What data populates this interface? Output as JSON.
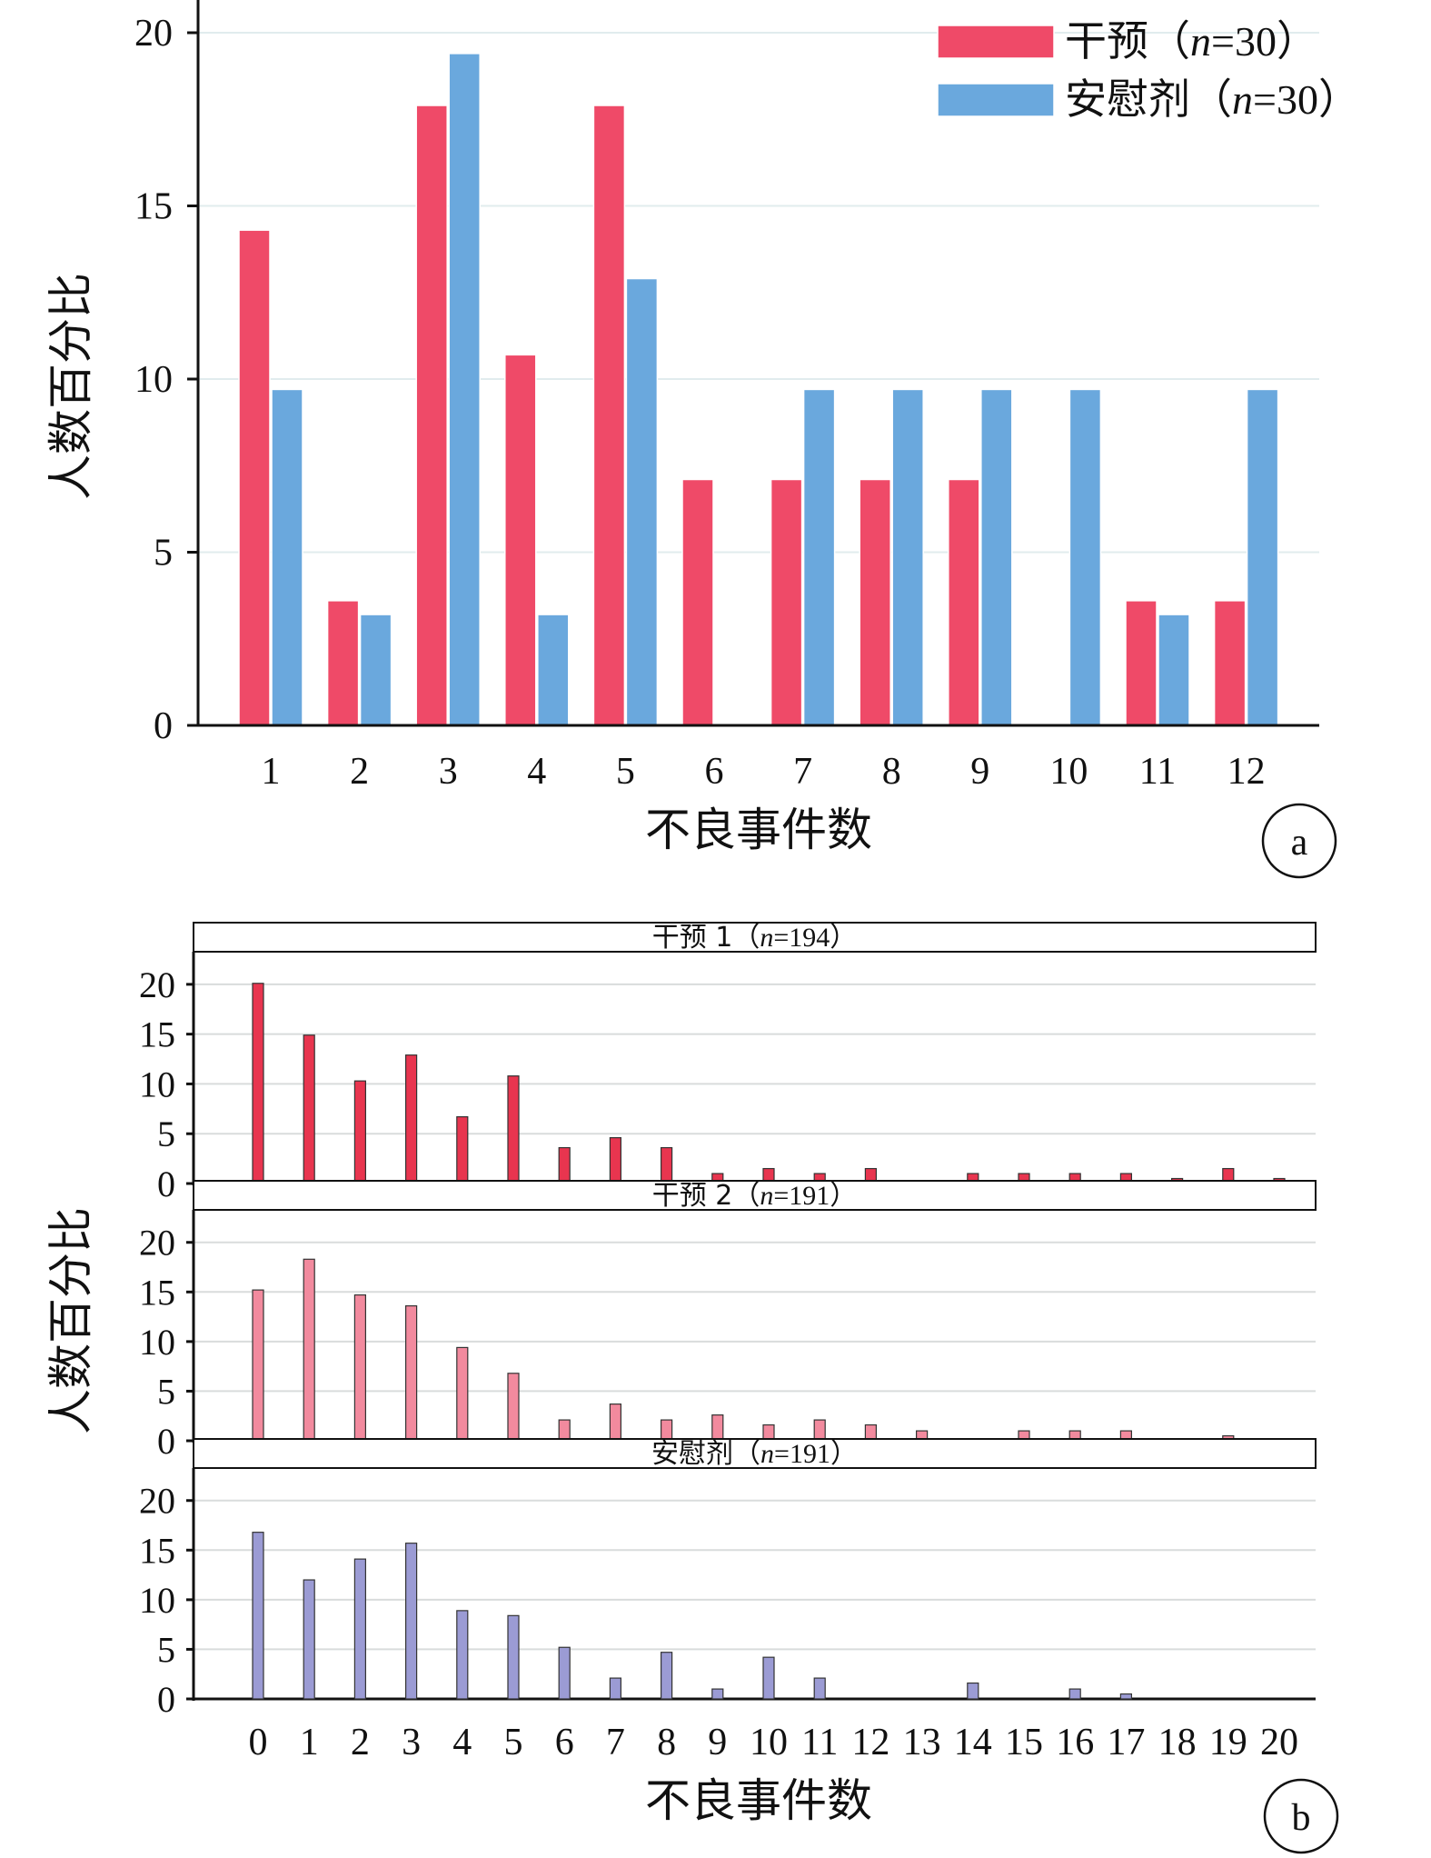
{
  "chart_data": [
    {
      "panel_label": "a",
      "type": "bar",
      "xlabel": "不良事件数",
      "ylabel": "人数百分比",
      "ylim": [
        0,
        20
      ],
      "yticks": [
        "0",
        "5",
        "10",
        "15",
        "20"
      ],
      "categories": [
        "1",
        "2",
        "3",
        "4",
        "5",
        "6",
        "7",
        "8",
        "9",
        "10",
        "11",
        "12"
      ],
      "grid": "horizontal",
      "legend_position": "top-right",
      "series": [
        {
          "name": "干预（n=30）",
          "name_prefix": "干预（",
          "name_var": "n",
          "name_suffix": "=30）",
          "color": "#ef4a68",
          "values": [
            14.3,
            3.6,
            17.9,
            10.7,
            17.9,
            7.1,
            7.1,
            7.1,
            7.1,
            0,
            3.6,
            3.6
          ]
        },
        {
          "name": "安慰剂（n=30）",
          "name_prefix": "安慰剂（",
          "name_var": "n",
          "name_suffix": "=30）",
          "color": "#6aa8dd",
          "values": [
            9.7,
            3.2,
            19.4,
            3.2,
            12.9,
            0,
            9.7,
            9.7,
            9.7,
            9.7,
            3.2,
            9.7
          ]
        }
      ]
    },
    {
      "panel_label": "b",
      "type": "bar",
      "xlabel": "不良事件数",
      "ylabel": "人数百分比",
      "ylim": [
        0,
        23
      ],
      "yticks": [
        "0",
        "5",
        "10",
        "15",
        "20"
      ],
      "categories": [
        "0",
        "1",
        "2",
        "3",
        "4",
        "5",
        "6",
        "7",
        "8",
        "9",
        "10",
        "11",
        "12",
        "13",
        "14",
        "15",
        "16",
        "17",
        "18",
        "19",
        "20"
      ],
      "grid": "horizontal",
      "facets": [
        {
          "title": "干预 1（n=194）",
          "title_prefix": "干预 1（",
          "title_var": "n",
          "title_suffix": "=194）",
          "color": "#e8354f",
          "values": [
            20.1,
            14.9,
            10.3,
            12.9,
            6.7,
            10.8,
            3.6,
            4.6,
            3.6,
            1.0,
            1.5,
            1.0,
            1.5,
            0,
            1.0,
            1.0,
            1.0,
            1.0,
            0.5,
            1.5,
            0.5
          ]
        },
        {
          "title": "干预 2（n=191）",
          "title_prefix": "干预 2（",
          "title_var": "n",
          "title_suffix": "=191）",
          "color": "#f28a9e",
          "values": [
            15.2,
            18.3,
            14.7,
            13.6,
            9.4,
            6.8,
            2.1,
            3.7,
            2.1,
            2.6,
            1.6,
            2.1,
            1.6,
            1.0,
            0,
            1.0,
            1.0,
            1.0,
            0,
            0.5,
            0
          ]
        },
        {
          "title": "安慰剂（n=191）",
          "title_prefix": "安慰剂（",
          "title_var": "n",
          "title_suffix": "=191）",
          "color": "#9b9bd4",
          "values": [
            16.8,
            12.0,
            14.1,
            15.7,
            8.9,
            8.4,
            5.2,
            2.1,
            4.7,
            1.0,
            4.2,
            2.1,
            0,
            0,
            1.6,
            0,
            1.0,
            0.5,
            0,
            0,
            0
          ]
        }
      ]
    }
  ]
}
